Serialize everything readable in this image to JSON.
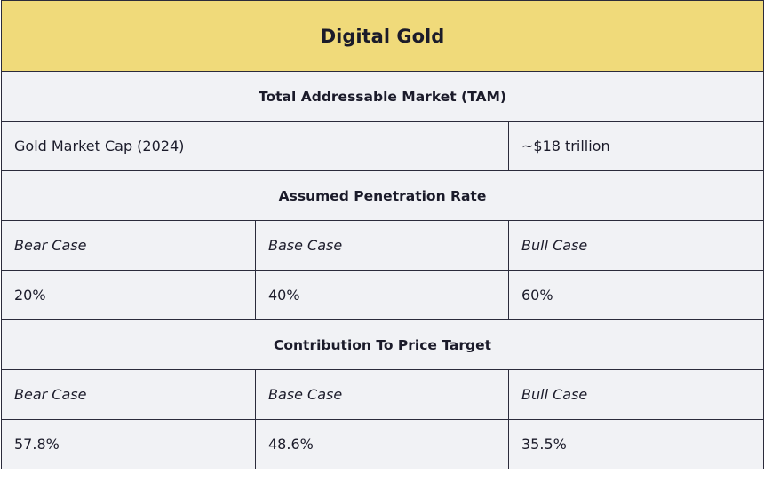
{
  "title": "Digital Gold",
  "tam": {
    "heading": "Total Addressable Market (TAM)",
    "label": "Gold Market Cap (2024)",
    "value": "~$18 trillion"
  },
  "penetration": {
    "heading": "Assumed Penetration Rate",
    "cases": [
      "Bear Case",
      "Base Case",
      "Bull Case"
    ],
    "values": [
      "20%",
      "40%",
      "60%"
    ]
  },
  "contribution": {
    "heading": "Contribution To Price Target",
    "cases": [
      "Bear Case",
      "Base Case",
      "Bull Case"
    ],
    "values": [
      "57.8%",
      "48.6%",
      "35.5%"
    ]
  },
  "colors": {
    "header": "#f0da7a",
    "cell": "#f1f2f5",
    "border": "#2b2b3b"
  }
}
